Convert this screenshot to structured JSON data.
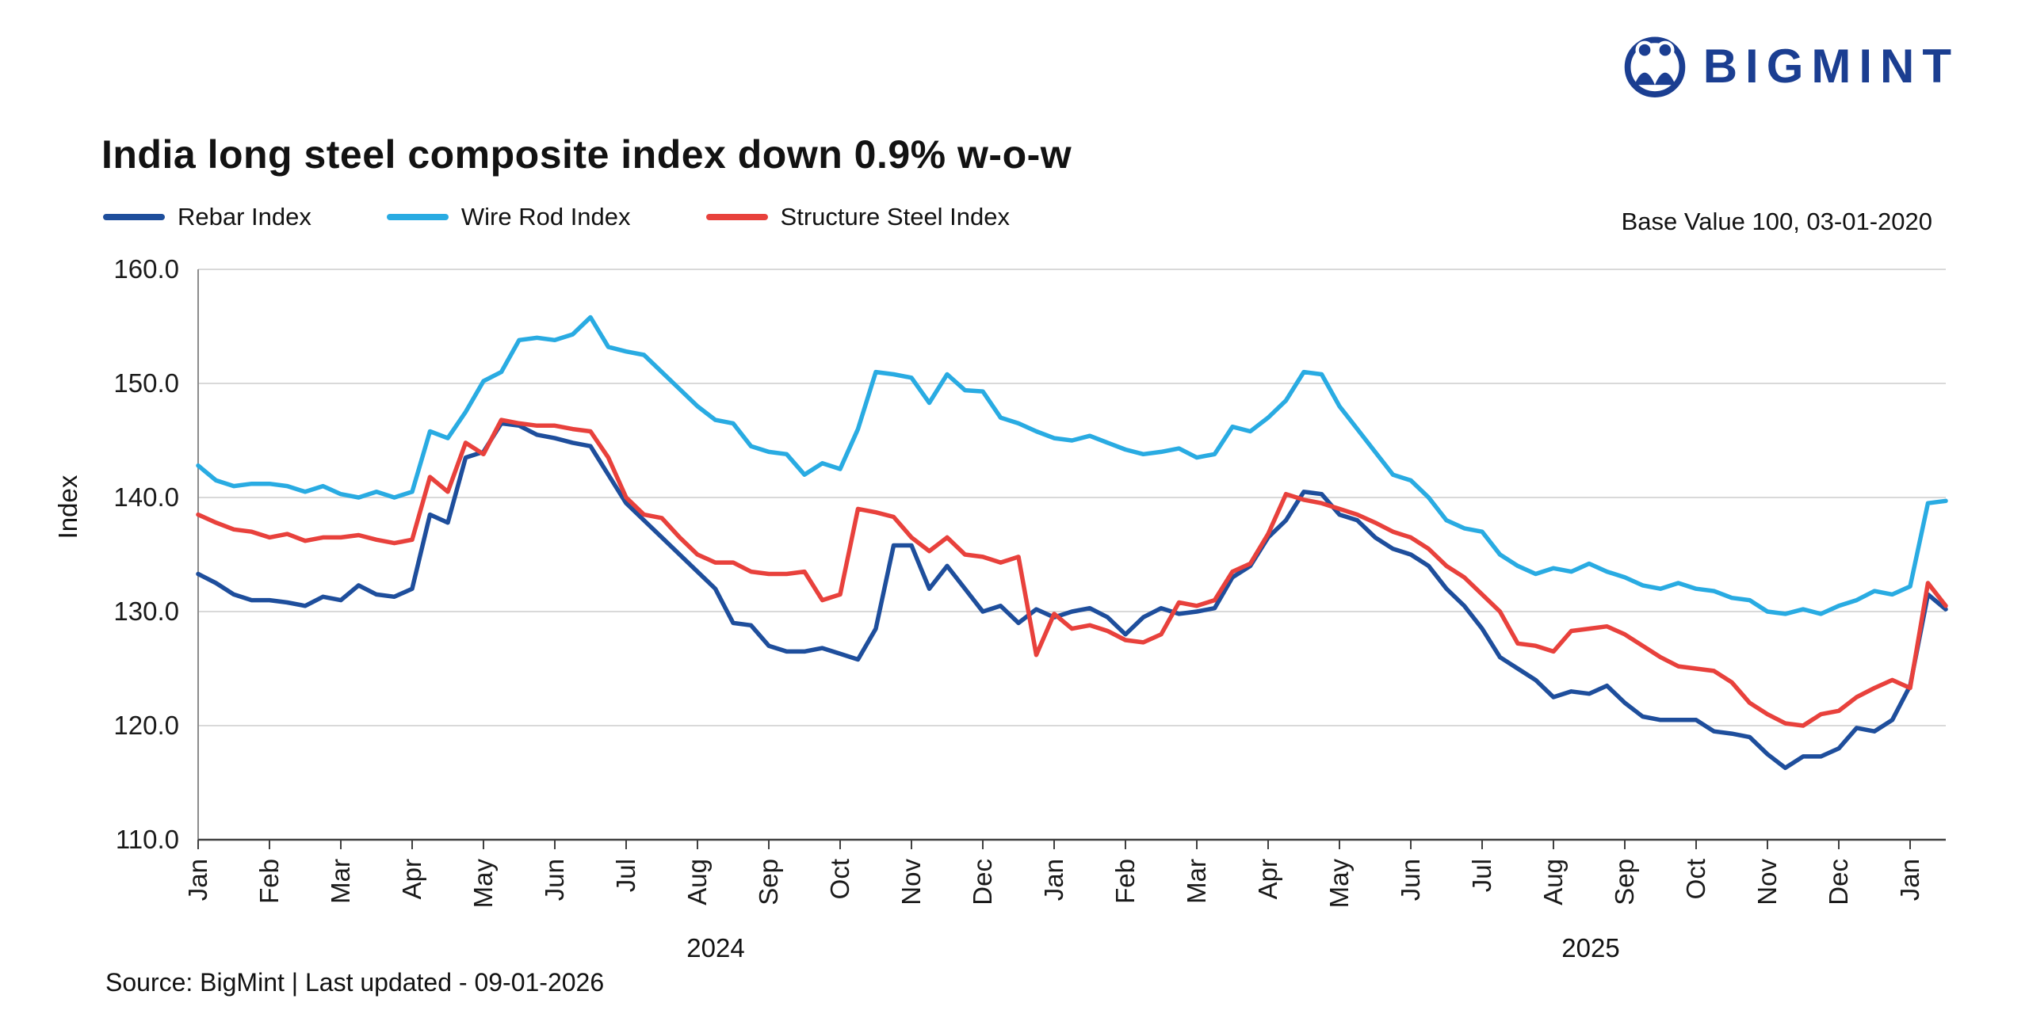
{
  "logo": {
    "text": "BIGMINT",
    "color": "#1b3e91"
  },
  "header": {
    "title": "India long steel composite index down 0.9% w-o-w",
    "base_note": "Base Value 100, 03-01-2020"
  },
  "footer": {
    "source": "Source: BigMint | Last updated - 09-01-2026"
  },
  "chart_data": {
    "type": "line",
    "title": "India long steel composite index down 0.9% w-o-w",
    "xlabel": "",
    "ylabel": "Index",
    "ylim": [
      110,
      160
    ],
    "ytick_step": 10,
    "grid": "horizontal",
    "legend_position": "top-left",
    "points_per_month": 4,
    "x_month_labels": [
      "Jan",
      "Feb",
      "Mar",
      "Apr",
      "May",
      "Jun",
      "Jul",
      "Aug",
      "Sep",
      "Oct",
      "Nov",
      "Dec",
      "Jan",
      "Feb",
      "Mar",
      "Apr",
      "May",
      "Jun",
      "Jul",
      "Aug",
      "Sep",
      "Oct",
      "Nov",
      "Dec",
      "Jan"
    ],
    "year_labels": [
      "2024",
      "2025"
    ],
    "series": [
      {
        "name": "Rebar Index",
        "color": "#1e4e9c",
        "values": [
          133.3,
          132.5,
          131.5,
          131.0,
          131.0,
          130.8,
          130.5,
          131.3,
          131.0,
          132.3,
          131.5,
          131.3,
          132.0,
          138.5,
          137.8,
          143.5,
          144.0,
          146.5,
          146.3,
          145.5,
          145.2,
          144.8,
          144.5,
          142.0,
          139.5,
          138.0,
          136.5,
          135.0,
          133.5,
          132.0,
          129.0,
          128.8,
          127.0,
          126.5,
          126.5,
          126.8,
          126.3,
          125.8,
          128.5,
          135.8,
          135.8,
          132.0,
          134.0,
          132.0,
          130.0,
          130.5,
          129.0,
          130.2,
          129.5,
          130.0,
          130.3,
          129.5,
          128.0,
          129.5,
          130.3,
          129.8,
          130.0,
          130.3,
          133.0,
          134.0,
          136.5,
          138.0,
          140.5,
          140.3,
          138.5,
          138.0,
          136.5,
          135.5,
          135.0,
          134.0,
          132.0,
          130.5,
          128.5,
          126.0,
          125.0,
          124.0,
          122.5,
          123.0,
          122.8,
          123.5,
          122.0,
          120.8,
          120.5,
          120.5,
          120.5,
          119.5,
          119.3,
          119.0,
          117.5,
          116.3,
          117.3,
          117.3,
          118.0,
          119.8,
          119.5,
          120.5,
          123.5,
          131.5,
          130.2
        ]
      },
      {
        "name": "Wire Rod Index",
        "color": "#29abe2",
        "values": [
          142.8,
          141.5,
          141.0,
          141.2,
          141.2,
          141.0,
          140.5,
          141.0,
          140.3,
          140.0,
          140.5,
          140.0,
          140.5,
          145.8,
          145.2,
          147.5,
          150.2,
          151.0,
          153.8,
          154.0,
          153.8,
          154.3,
          155.8,
          153.2,
          152.8,
          152.5,
          151.0,
          149.5,
          148.0,
          146.8,
          146.5,
          144.5,
          144.0,
          143.8,
          142.0,
          143.0,
          142.5,
          146.0,
          151.0,
          150.8,
          150.5,
          148.3,
          150.8,
          149.4,
          149.3,
          147.0,
          146.5,
          145.8,
          145.2,
          145.0,
          145.4,
          144.8,
          144.2,
          143.8,
          144.0,
          144.3,
          143.5,
          143.8,
          146.2,
          145.8,
          147.0,
          148.5,
          151.0,
          150.8,
          148.0,
          146.0,
          144.0,
          142.0,
          141.5,
          140.0,
          138.0,
          137.3,
          137.0,
          135.0,
          134.0,
          133.3,
          133.8,
          133.5,
          134.2,
          133.5,
          133.0,
          132.3,
          132.0,
          132.5,
          132.0,
          131.8,
          131.2,
          131.0,
          130.0,
          129.8,
          130.2,
          129.8,
          130.5,
          131.0,
          131.8,
          131.5,
          132.2,
          139.5,
          139.7
        ]
      },
      {
        "name": "Structure Steel Index",
        "color": "#e8413c",
        "values": [
          138.5,
          137.8,
          137.2,
          137.0,
          136.5,
          136.8,
          136.2,
          136.5,
          136.5,
          136.7,
          136.3,
          136.0,
          136.3,
          141.8,
          140.5,
          144.8,
          143.8,
          146.8,
          146.5,
          146.3,
          146.3,
          146.0,
          145.8,
          143.5,
          140.0,
          138.5,
          138.2,
          136.5,
          135.0,
          134.3,
          134.3,
          133.5,
          133.3,
          133.3,
          133.5,
          131.0,
          131.5,
          139.0,
          138.7,
          138.3,
          136.5,
          135.3,
          136.5,
          135.0,
          134.8,
          134.3,
          134.8,
          126.2,
          129.8,
          128.5,
          128.8,
          128.3,
          127.5,
          127.3,
          128.0,
          130.8,
          130.5,
          131.0,
          133.5,
          134.2,
          136.8,
          140.3,
          139.8,
          139.5,
          139.0,
          138.5,
          137.8,
          137.0,
          136.5,
          135.5,
          134.0,
          133.0,
          131.5,
          130.0,
          127.2,
          127.0,
          126.5,
          128.3,
          128.5,
          128.7,
          128.0,
          127.0,
          126.0,
          125.2,
          125.0,
          124.8,
          123.8,
          122.0,
          121.0,
          120.2,
          120.0,
          121.0,
          121.3,
          122.5,
          123.3,
          124.0,
          123.3,
          132.5,
          130.5
        ]
      }
    ]
  }
}
